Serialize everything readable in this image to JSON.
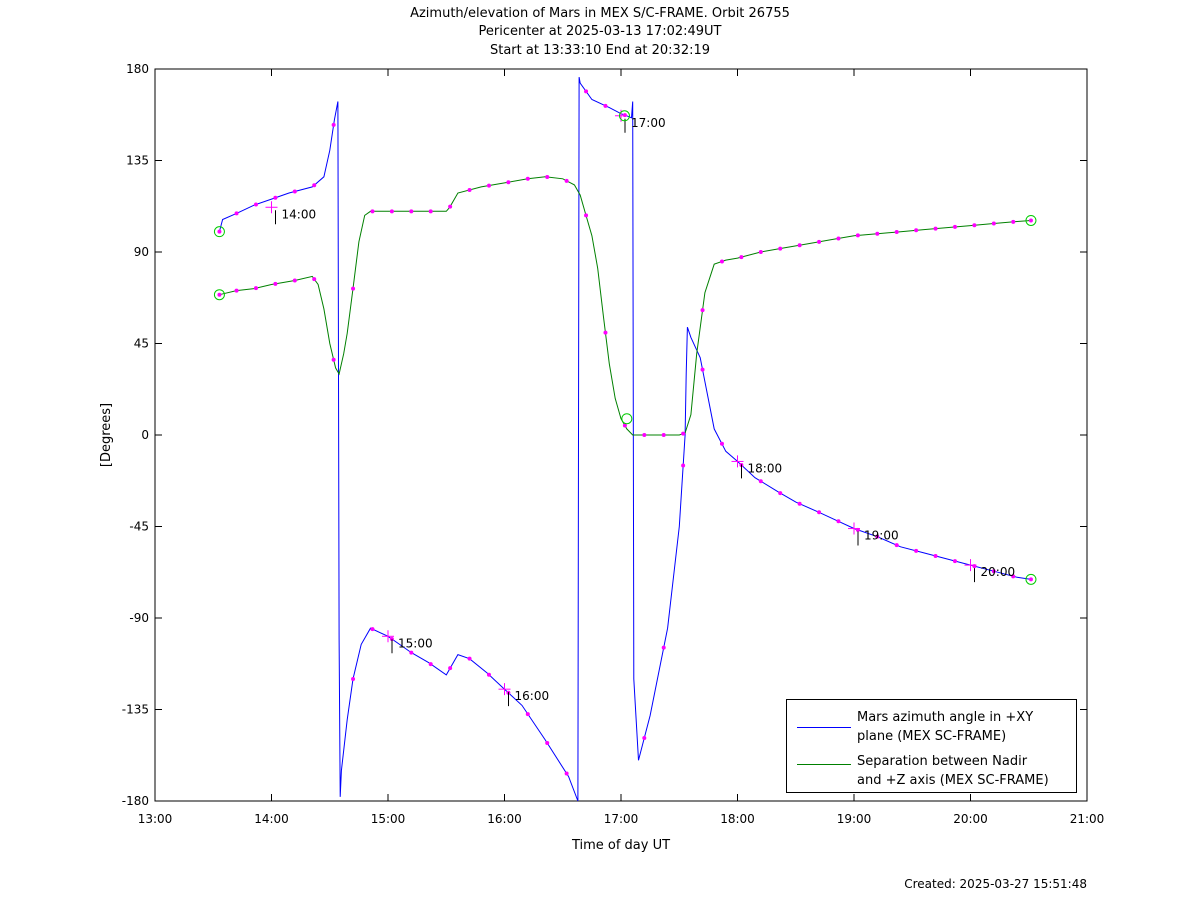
{
  "title": {
    "line1": "Azimuth/elevation of Mars in MEX S/C-FRAME.  Orbit 26755",
    "line2": "Pericenter at 2025-03-13 17:02:49UT",
    "line3": "Start at 13:33:10 End at 20:32:19"
  },
  "created": "Created: 2025-03-27 15:51:48",
  "legend": [
    {
      "line1": "Mars azimuth angle in +XY",
      "line2": "plane (MEX SC-FRAME)",
      "color": "#0000ff"
    },
    {
      "line1": "Separation between Nadir",
      "line2": "and +Z axis (MEX SC-FRAME)",
      "color": "#008000"
    }
  ],
  "colors": {
    "azimuth": "#0000ff",
    "separation": "#008000",
    "marker": "#ff00ff",
    "endpoint": "#00cc00"
  },
  "chart_data": {
    "type": "line",
    "xlabel": "Time of day UT",
    "ylabel": "[Degrees]",
    "xlim": [
      13.0,
      21.0
    ],
    "ylim": [
      -180,
      180
    ],
    "xticks": [
      13,
      14,
      15,
      16,
      17,
      18,
      19,
      20,
      21
    ],
    "xtick_labels": [
      "13:00",
      "14:00",
      "15:00",
      "16:00",
      "17:00",
      "18:00",
      "19:00",
      "20:00",
      "21:00"
    ],
    "yticks": [
      180,
      135,
      90,
      45,
      0,
      -45,
      -90,
      -135,
      -180
    ],
    "ytick_labels": [
      "180",
      "135",
      "90",
      "45",
      "0",
      "-45",
      "-90",
      "-135",
      "-180"
    ],
    "series": [
      {
        "name": "Mars azimuth angle in +XY plane (MEX SC-FRAME)",
        "x": [
          13.553,
          13.58,
          13.7,
          13.85,
          14.0,
          14.15,
          14.35,
          14.45,
          14.5,
          14.54,
          14.57,
          14.575,
          14.58,
          14.59,
          14.6,
          14.65,
          14.7,
          14.77,
          14.85,
          15.0,
          15.1,
          15.2,
          15.35,
          15.5,
          15.6,
          15.7,
          15.85,
          16.0,
          16.15,
          16.35,
          16.55,
          16.63,
          16.635,
          16.64,
          16.65,
          16.75,
          16.9,
          17.0,
          17.05,
          17.09,
          17.095,
          17.1,
          17.11,
          17.15,
          17.25,
          17.4,
          17.5,
          17.55,
          17.56,
          17.57,
          17.6,
          17.68,
          17.8,
          17.9,
          18.0,
          18.15,
          18.35,
          18.5,
          18.7,
          18.85,
          19.0,
          19.2,
          19.4,
          19.6,
          19.8,
          20.0,
          20.2,
          20.4,
          20.519
        ],
        "y": [
          100,
          106,
          109,
          113,
          116,
          119,
          122,
          127,
          140,
          155,
          164,
          30,
          -100,
          -178,
          -165,
          -140,
          -120,
          -103,
          -95,
          -99,
          -103,
          -107,
          -112,
          -118,
          -108,
          -110,
          -117,
          -125,
          -133,
          -150,
          -168,
          -180,
          0,
          176,
          173,
          165,
          161,
          158,
          157,
          156,
          160,
          164,
          -120,
          -160,
          -138,
          -95,
          -45,
          0,
          30,
          53,
          48,
          38,
          3,
          -8,
          -13,
          -21,
          -28,
          -33,
          -38,
          -42,
          -46,
          -50,
          -55,
          -58,
          -61,
          -64,
          -67,
          -70,
          -71
        ]
      },
      {
        "name": "Separation between Nadir and +Z axis (MEX SC-FRAME)",
        "x": [
          13.553,
          13.7,
          13.85,
          14.0,
          14.2,
          14.35,
          14.4,
          14.45,
          14.5,
          14.55,
          14.58,
          14.62,
          14.65,
          14.7,
          14.75,
          14.8,
          14.85,
          15.0,
          15.2,
          15.4,
          15.5,
          15.53,
          15.6,
          15.8,
          16.0,
          16.2,
          16.35,
          16.5,
          16.6,
          16.65,
          16.7,
          16.75,
          16.8,
          16.85,
          16.9,
          16.95,
          17.0,
          17.05,
          17.1,
          17.2,
          17.4,
          17.5,
          17.55,
          17.6,
          17.65,
          17.72,
          17.8,
          17.9,
          18.0,
          18.2,
          18.4,
          18.6,
          18.8,
          19.0,
          19.2,
          19.4,
          19.6,
          19.8,
          20.0,
          20.2,
          20.4,
          20.519
        ],
        "y": [
          69,
          71,
          72,
          74,
          76,
          78,
          74,
          62,
          45,
          33,
          30,
          40,
          50,
          72,
          95,
          108,
          110,
          110,
          110,
          110,
          110,
          112,
          119,
          122,
          124,
          126,
          127,
          126,
          123,
          118,
          108,
          98,
          82,
          58,
          35,
          18,
          8,
          3,
          0,
          0,
          0,
          0,
          1,
          10,
          40,
          70,
          84,
          86,
          87,
          90,
          92,
          94,
          96,
          98,
          99,
          100,
          101,
          102,
          103,
          104,
          105,
          105.5
        ]
      }
    ],
    "time_labels": [
      {
        "text": "14:00",
        "x": 14.0,
        "y": 112
      },
      {
        "text": "15:00",
        "x": 15.0,
        "y": -99
      },
      {
        "text": "16:00",
        "x": 16.0,
        "y": -125
      },
      {
        "text": "17:00",
        "x": 17.0,
        "y": 157
      },
      {
        "text": "18:00",
        "x": 18.0,
        "y": -13
      },
      {
        "text": "19:00",
        "x": 19.0,
        "y": -46
      },
      {
        "text": "20:00",
        "x": 20.0,
        "y": -64
      }
    ]
  }
}
